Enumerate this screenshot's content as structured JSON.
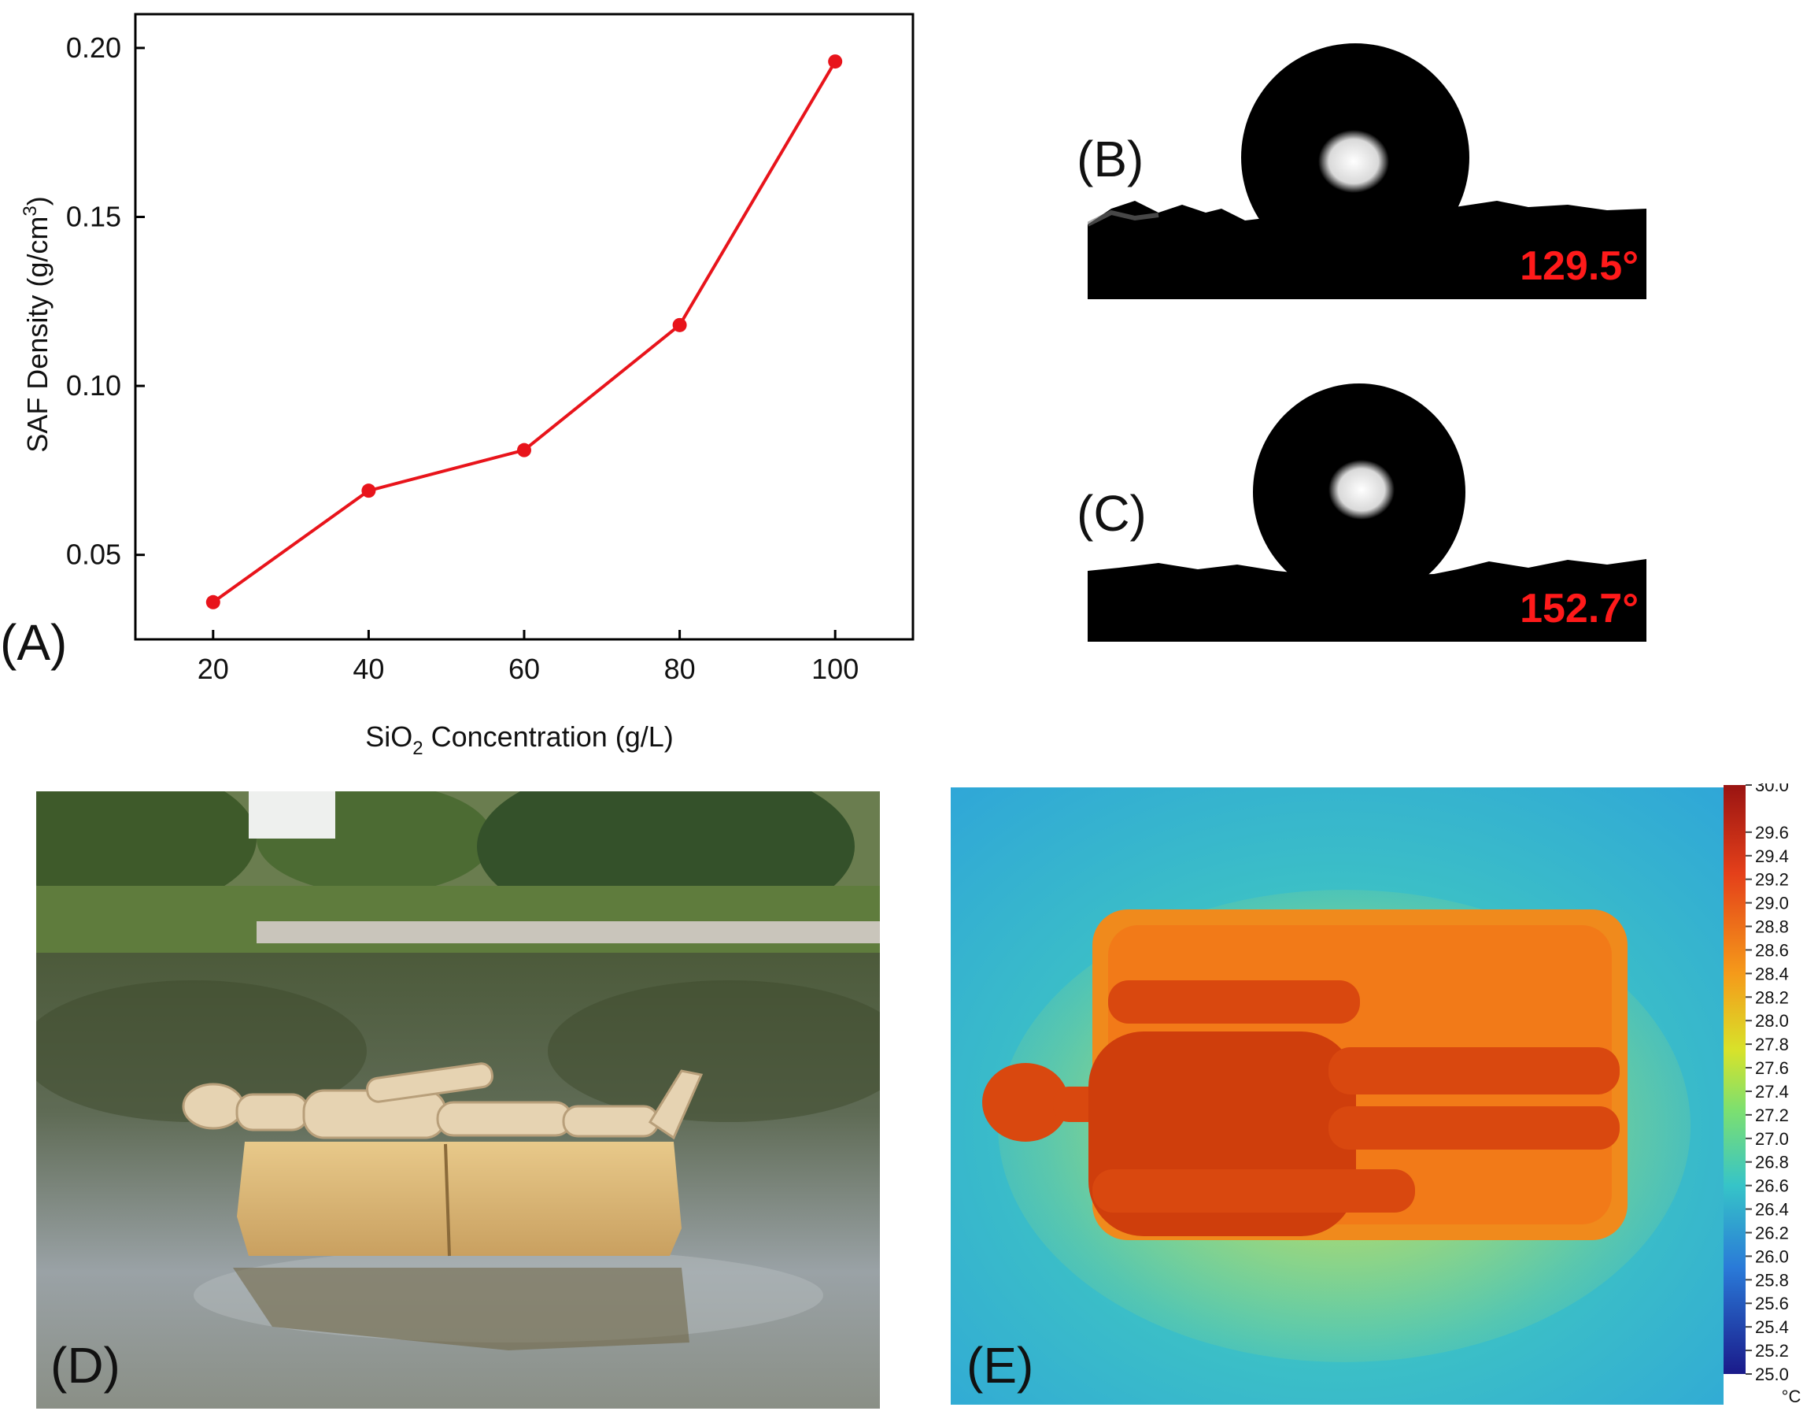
{
  "panels": {
    "A": {
      "label": "(A)"
    },
    "B": {
      "label": "(B)",
      "angle": "129.5°"
    },
    "C": {
      "label": "(C)",
      "angle": "152.7°"
    },
    "D": {
      "label": "(D)"
    },
    "E": {
      "label": "(E)"
    }
  },
  "chart_data": {
    "type": "line",
    "x": [
      20,
      40,
      60,
      80,
      100
    ],
    "values": [
      0.036,
      0.069,
      0.081,
      0.118,
      0.196
    ],
    "xlabel_parts": [
      "SiO",
      "2",
      " Concentration (g/L)"
    ],
    "ylabel_parts": [
      "SAF Density (g/cm",
      "3",
      ")"
    ],
    "xticks": [
      "20",
      "40",
      "60",
      "80",
      "100"
    ],
    "yticks": [
      "0.05",
      "0.10",
      "0.15",
      "0.20"
    ],
    "ytick_values": [
      0.05,
      0.1,
      0.15,
      0.2
    ],
    "xlim": [
      10,
      110
    ],
    "ylim": [
      0.025,
      0.21
    ],
    "grid": false,
    "line_color": "#e8141b"
  },
  "colorbar": {
    "unit": "°C",
    "range": [
      25.0,
      30.0
    ],
    "ticks": [
      "30.0",
      "29.6",
      "29.4",
      "29.2",
      "29.0",
      "28.8",
      "28.6",
      "28.4",
      "28.2",
      "28.0",
      "27.8",
      "27.6",
      "27.4",
      "27.2",
      "27.0",
      "26.8",
      "26.6",
      "26.4",
      "26.2",
      "26.0",
      "25.8",
      "25.6",
      "25.4",
      "25.2",
      "25.0"
    ]
  }
}
